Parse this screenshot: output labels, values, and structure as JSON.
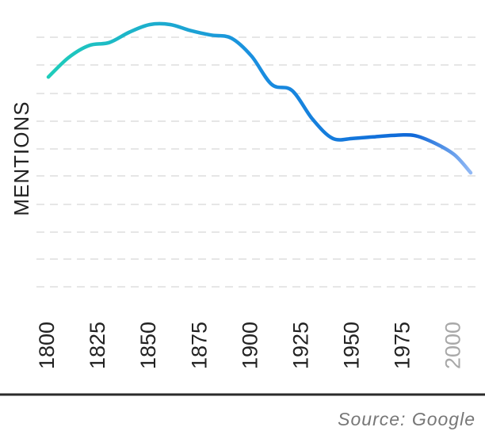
{
  "chart_data": {
    "type": "line",
    "xlabel": "",
    "ylabel": "MENTIONS",
    "source_text": "Source: Google",
    "x_ticks": [
      "1800",
      "1825",
      "1850",
      "1875",
      "1900",
      "1925",
      "1950",
      "1975",
      "2000"
    ],
    "xlim": [
      1800,
      2008
    ],
    "ylim": [
      0,
      10
    ],
    "grid": true,
    "legend": "none",
    "series": [
      {
        "x": [
          1800,
          1810,
          1820,
          1830,
          1840,
          1850,
          1860,
          1870,
          1880,
          1890,
          1900,
          1910,
          1920,
          1930,
          1940,
          1950,
          1960,
          1970,
          1980,
          1990,
          2000,
          2008
        ],
        "y": [
          7.8,
          8.45,
          8.85,
          8.95,
          9.3,
          9.55,
          9.55,
          9.35,
          9.2,
          9.1,
          8.5,
          7.55,
          7.35,
          6.4,
          5.75,
          5.75,
          5.8,
          5.85,
          5.85,
          5.6,
          5.2,
          4.6
        ]
      }
    ],
    "colors": {
      "line_start": "#1fd1b8",
      "line_mid": "#1a8fe0",
      "line_end": "#0f67d8",
      "projection": "#8ab4f5"
    }
  }
}
